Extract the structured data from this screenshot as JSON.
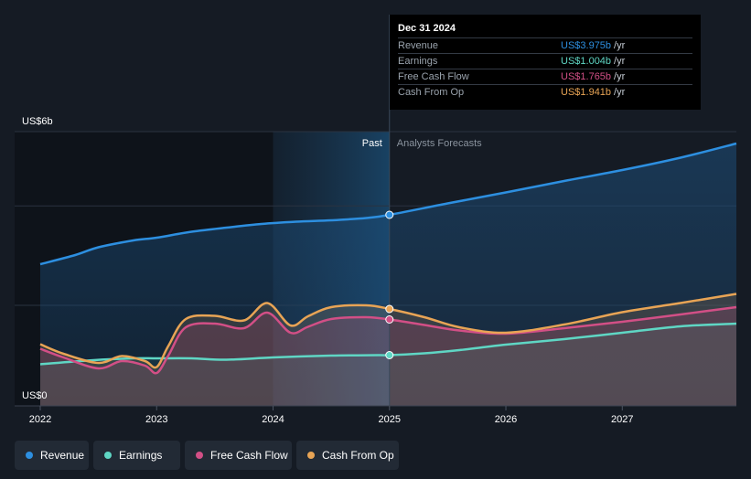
{
  "chart_data": {
    "type": "area",
    "y_axis": {
      "label_top": "US$6b",
      "label_bottom": "US$0",
      "ylim": [
        0,
        6
      ]
    },
    "x_ticks": [
      "2022",
      "2023",
      "2024",
      "2025",
      "2026",
      "2027"
    ],
    "x_tick_values": [
      2022,
      2023,
      2024,
      2025,
      2026,
      2027
    ],
    "xlim": [
      2021.78,
      2027.98
    ],
    "divider_x": 2025.0,
    "past_shade_start": 2024.0,
    "past_label": "Past",
    "forecast_label": "Analysts Forecasts",
    "gridlines_y": [
      6.0,
      4.375,
      2.2
    ],
    "series": [
      {
        "name": "Revenue",
        "color": "#2d8fe0",
        "x": [
          2022.0,
          2022.3,
          2022.5,
          2022.8,
          2023.0,
          2023.3,
          2023.6,
          2023.9,
          2024.2,
          2024.5,
          2024.8,
          2025.0,
          2025.5,
          2026.0,
          2026.5,
          2027.0,
          2027.5,
          2027.98
        ],
        "y": [
          3.1,
          3.3,
          3.47,
          3.62,
          3.68,
          3.81,
          3.9,
          3.98,
          4.03,
          4.06,
          4.11,
          4.18,
          4.43,
          4.67,
          4.92,
          5.16,
          5.43,
          5.74
        ]
      },
      {
        "name": "Earnings",
        "color": "#5fd6c4",
        "x": [
          2022.0,
          2022.4,
          2022.8,
          2023.0,
          2023.3,
          2023.6,
          2024.0,
          2024.5,
          2024.9,
          2025.0,
          2025.3,
          2025.6,
          2026.0,
          2026.5,
          2027.0,
          2027.5,
          2027.98
        ],
        "y": [
          0.91,
          0.99,
          1.04,
          1.04,
          1.04,
          1.01,
          1.06,
          1.1,
          1.11,
          1.11,
          1.15,
          1.22,
          1.34,
          1.46,
          1.6,
          1.74,
          1.8
        ]
      },
      {
        "name": "Free Cash Flow",
        "color": "#d24f86",
        "x": [
          2022.0,
          2022.2,
          2022.5,
          2022.7,
          2022.9,
          2023.0,
          2023.1,
          2023.25,
          2023.5,
          2023.75,
          2023.95,
          2024.15,
          2024.3,
          2024.5,
          2024.8,
          2025.0,
          2025.3,
          2025.6,
          2026.0,
          2026.5,
          2027.0,
          2027.5,
          2027.98
        ],
        "y": [
          1.25,
          1.06,
          0.82,
          0.98,
          0.88,
          0.72,
          1.1,
          1.72,
          1.8,
          1.7,
          2.04,
          1.6,
          1.73,
          1.9,
          1.94,
          1.89,
          1.77,
          1.65,
          1.58,
          1.7,
          1.84,
          2.0,
          2.16
        ]
      },
      {
        "name": "Cash From Op",
        "color": "#e8a455",
        "x": [
          2022.0,
          2022.2,
          2022.5,
          2022.7,
          2022.9,
          2023.0,
          2023.1,
          2023.25,
          2023.5,
          2023.75,
          2023.95,
          2024.15,
          2024.3,
          2024.5,
          2024.8,
          2025.0,
          2025.3,
          2025.6,
          2026.0,
          2026.5,
          2027.0,
          2027.5,
          2027.98
        ],
        "y": [
          1.35,
          1.14,
          0.94,
          1.09,
          0.98,
          0.85,
          1.31,
          1.9,
          1.97,
          1.87,
          2.25,
          1.76,
          1.96,
          2.16,
          2.2,
          2.12,
          1.94,
          1.72,
          1.6,
          1.78,
          2.05,
          2.25,
          2.45
        ]
      }
    ],
    "highlight_x": 2025.0
  },
  "tooltip": {
    "date": "Dec 31 2024",
    "rows": [
      {
        "label": "Revenue",
        "value": "US$3.975b",
        "unit": "/yr",
        "color": "#2d8fe0"
      },
      {
        "label": "Earnings",
        "value": "US$1.004b",
        "unit": "/yr",
        "color": "#5fd6c4"
      },
      {
        "label": "Free Cash Flow",
        "value": "US$1.765b",
        "unit": "/yr",
        "color": "#d24f86"
      },
      {
        "label": "Cash From Op",
        "value": "US$1.941b",
        "unit": "/yr",
        "color": "#e8a455"
      }
    ]
  },
  "legend": [
    {
      "label": "Revenue",
      "color": "#2d8fe0"
    },
    {
      "label": "Earnings",
      "color": "#5fd6c4"
    },
    {
      "label": "Free Cash Flow",
      "color": "#d24f86"
    },
    {
      "label": "Cash From Op",
      "color": "#e8a455"
    }
  ]
}
